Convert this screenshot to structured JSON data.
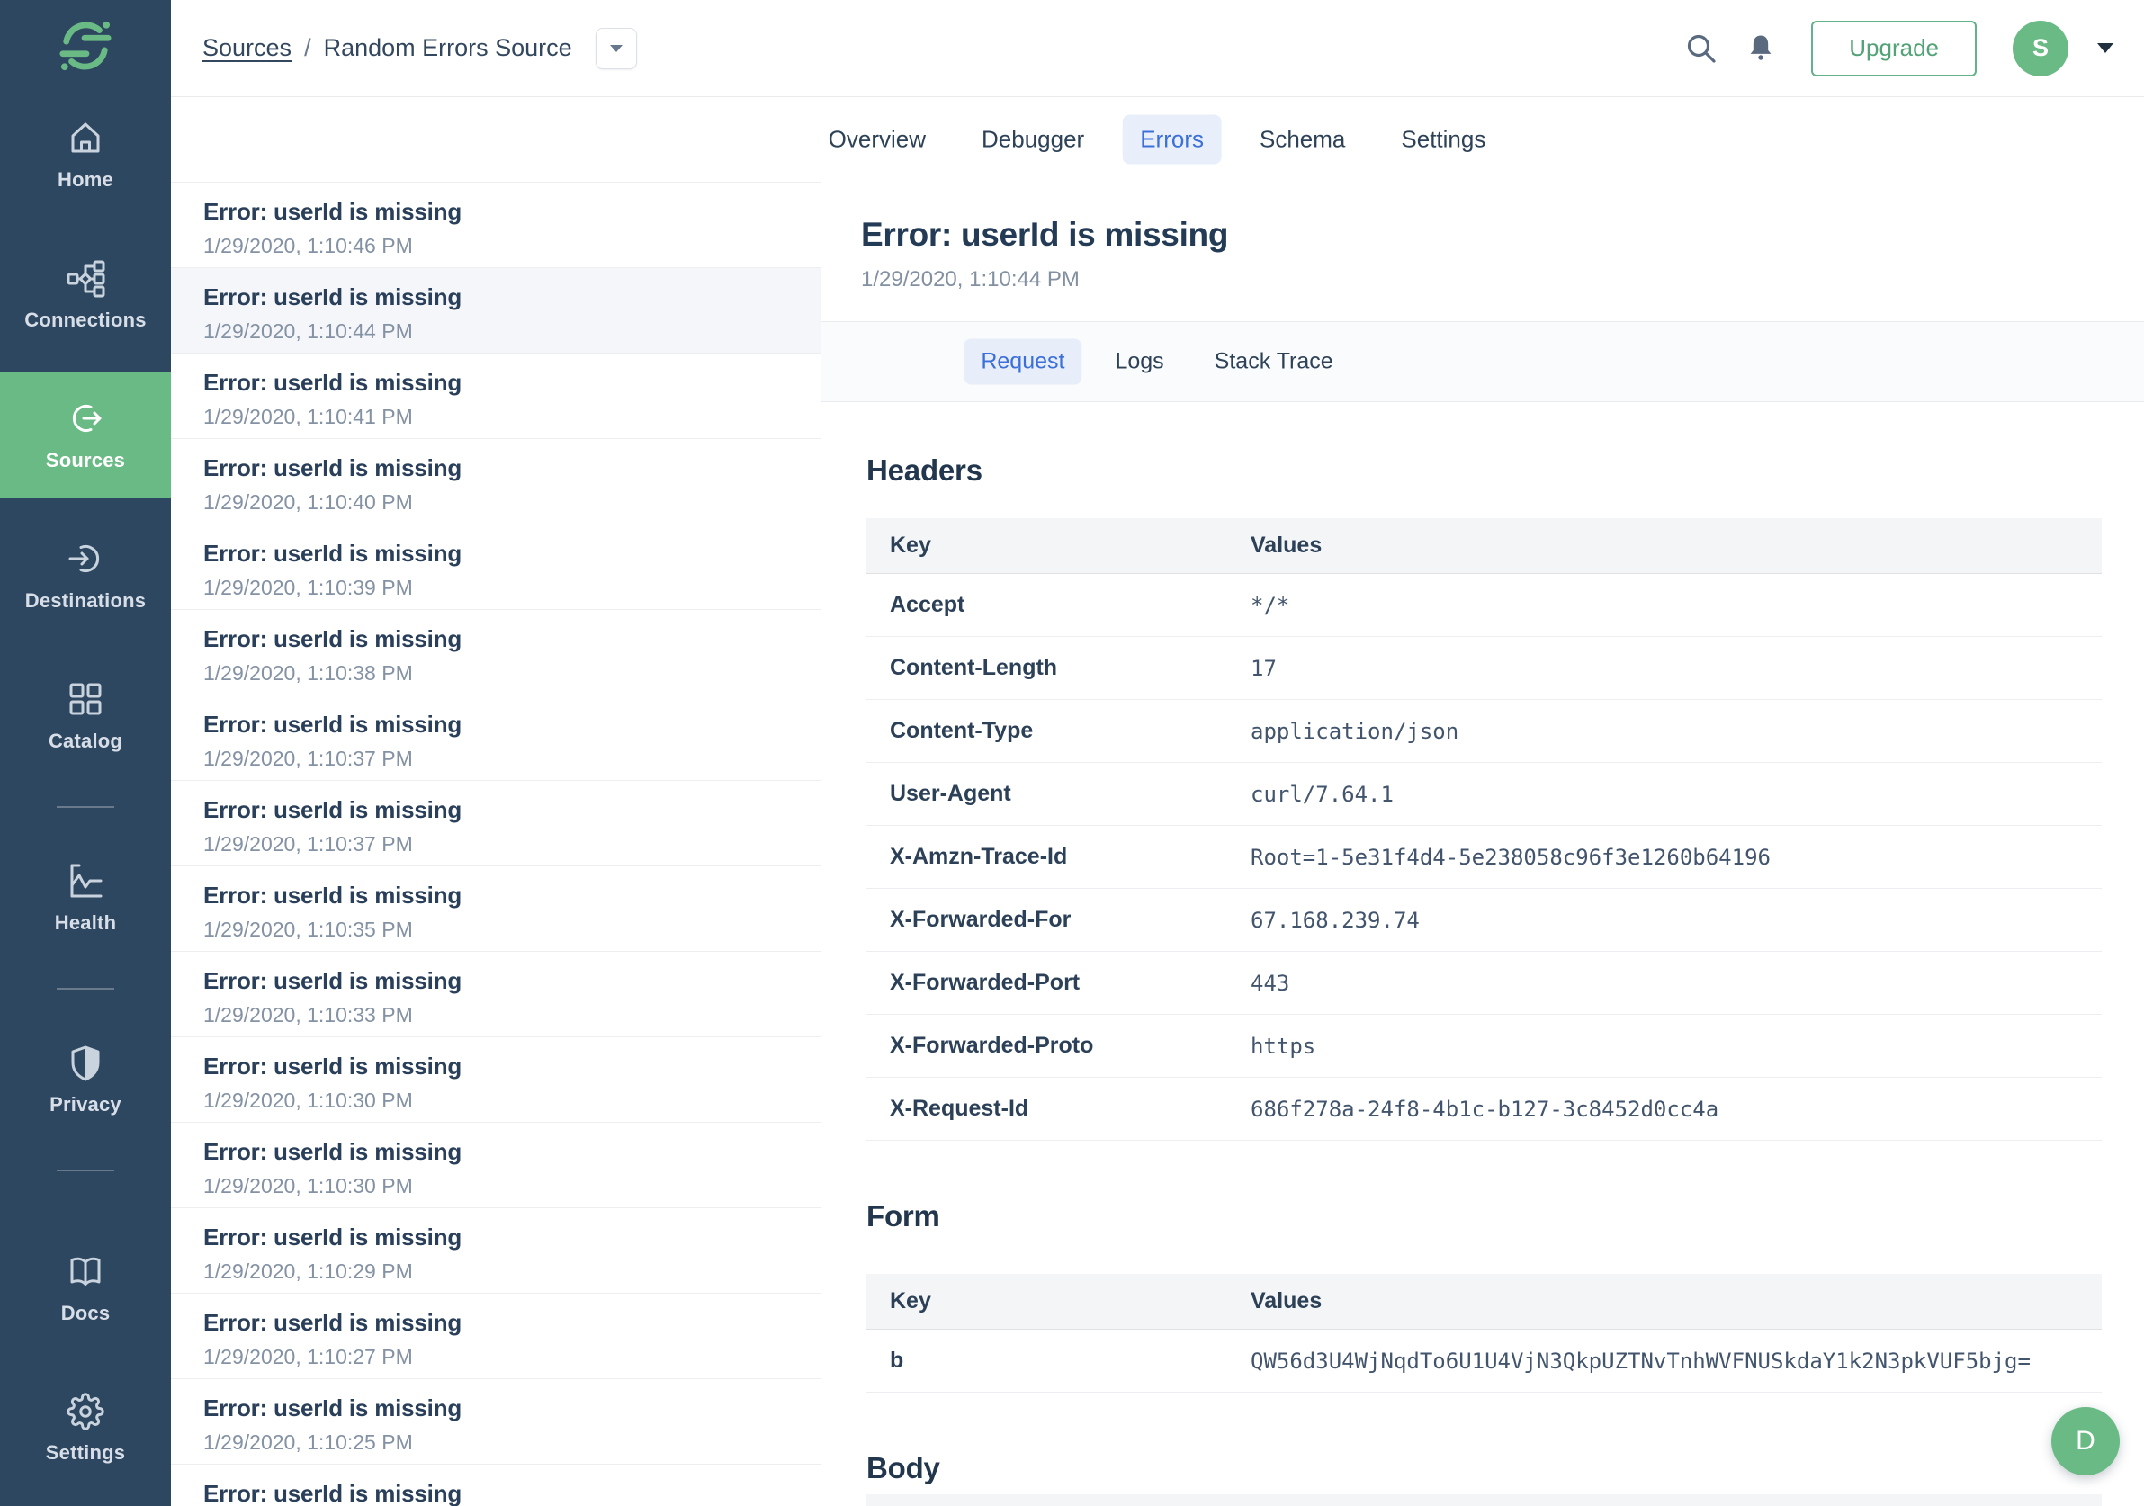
{
  "colors": {
    "sidebar_bg": "#2e4760",
    "accent_green": "#69ba84",
    "active_tab_blue": "#3b6fd9",
    "active_tab_bg": "#e9effa",
    "text_navy": "#243b56",
    "muted_gray": "#8492a4"
  },
  "sidebar": {
    "logo_icon": "segment-logo-icon",
    "items": [
      {
        "id": "home",
        "label": "Home",
        "icon": "home-icon"
      },
      {
        "id": "connections",
        "label": "Connections",
        "icon": "connections-icon"
      },
      {
        "id": "sources",
        "label": "Sources",
        "icon": "sources-icon",
        "active": true
      },
      {
        "id": "destinations",
        "label": "Destinations",
        "icon": "destinations-icon"
      },
      {
        "id": "catalog",
        "label": "Catalog",
        "icon": "catalog-icon"
      },
      {
        "type": "divider"
      },
      {
        "id": "health",
        "label": "Health",
        "icon": "health-icon"
      },
      {
        "type": "divider"
      },
      {
        "id": "privacy",
        "label": "Privacy",
        "icon": "privacy-icon"
      },
      {
        "type": "divider"
      },
      {
        "id": "docs",
        "label": "Docs",
        "icon": "docs-icon"
      },
      {
        "id": "settings",
        "label": "Settings",
        "icon": "settings-icon"
      }
    ]
  },
  "header": {
    "breadcrumb": {
      "link": "Sources",
      "separator": "/",
      "current": "Random Errors Source"
    },
    "upgrade_label": "Upgrade",
    "avatar_initial": "S"
  },
  "tabs": {
    "items": [
      "Overview",
      "Debugger",
      "Errors",
      "Schema",
      "Settings"
    ],
    "active": "Errors"
  },
  "error_list": {
    "items": [
      {
        "title": "Error: userId is missing",
        "timestamp": "1/29/2020, 1:10:46 PM"
      },
      {
        "title": "Error: userId is missing",
        "timestamp": "1/29/2020, 1:10:44 PM",
        "selected": true
      },
      {
        "title": "Error: userId is missing",
        "timestamp": "1/29/2020, 1:10:41 PM"
      },
      {
        "title": "Error: userId is missing",
        "timestamp": "1/29/2020, 1:10:40 PM"
      },
      {
        "title": "Error: userId is missing",
        "timestamp": "1/29/2020, 1:10:39 PM"
      },
      {
        "title": "Error: userId is missing",
        "timestamp": "1/29/2020, 1:10:38 PM"
      },
      {
        "title": "Error: userId is missing",
        "timestamp": "1/29/2020, 1:10:37 PM"
      },
      {
        "title": "Error: userId is missing",
        "timestamp": "1/29/2020, 1:10:37 PM"
      },
      {
        "title": "Error: userId is missing",
        "timestamp": "1/29/2020, 1:10:35 PM"
      },
      {
        "title": "Error: userId is missing",
        "timestamp": "1/29/2020, 1:10:33 PM"
      },
      {
        "title": "Error: userId is missing",
        "timestamp": "1/29/2020, 1:10:30 PM"
      },
      {
        "title": "Error: userId is missing",
        "timestamp": "1/29/2020, 1:10:30 PM"
      },
      {
        "title": "Error: userId is missing",
        "timestamp": "1/29/2020, 1:10:29 PM"
      },
      {
        "title": "Error: userId is missing",
        "timestamp": "1/29/2020, 1:10:27 PM"
      },
      {
        "title": "Error: userId is missing",
        "timestamp": "1/29/2020, 1:10:25 PM"
      },
      {
        "title": "Error: userId is missing",
        "timestamp": ""
      }
    ]
  },
  "detail": {
    "title": "Error: userId is missing",
    "timestamp": "1/29/2020, 1:10:44 PM",
    "subtabs": {
      "items": [
        "Request",
        "Logs",
        "Stack Trace"
      ],
      "active": "Request"
    },
    "sections": [
      {
        "heading": "Headers",
        "table": {
          "columns": [
            "Key",
            "Values"
          ],
          "rows": [
            [
              "Accept",
              "*/*"
            ],
            [
              "Content-Length",
              "17"
            ],
            [
              "Content-Type",
              "application/json"
            ],
            [
              "User-Agent",
              "curl/7.64.1"
            ],
            [
              "X-Amzn-Trace-Id",
              "Root=1-5e31f4d4-5e238058c96f3e1260b64196"
            ],
            [
              "X-Forwarded-For",
              "67.168.239.74"
            ],
            [
              "X-Forwarded-Port",
              "443"
            ],
            [
              "X-Forwarded-Proto",
              "https"
            ],
            [
              "X-Request-Id",
              "686f278a-24f8-4b1c-b127-3c8452d0cc4a"
            ]
          ]
        }
      },
      {
        "heading": "Form",
        "table": {
          "columns": [
            "Key",
            "Values"
          ],
          "rows": [
            [
              "b",
              "QW56d3U4WjNqdTo6U1U4VjN3QkpUZTNvTnhWVFNUSkdaY1k2N3pkVUF5bjg="
            ]
          ]
        }
      },
      {
        "heading": "Body",
        "table_partial": true
      }
    ]
  },
  "chat": {
    "avatar_initial": "D"
  }
}
